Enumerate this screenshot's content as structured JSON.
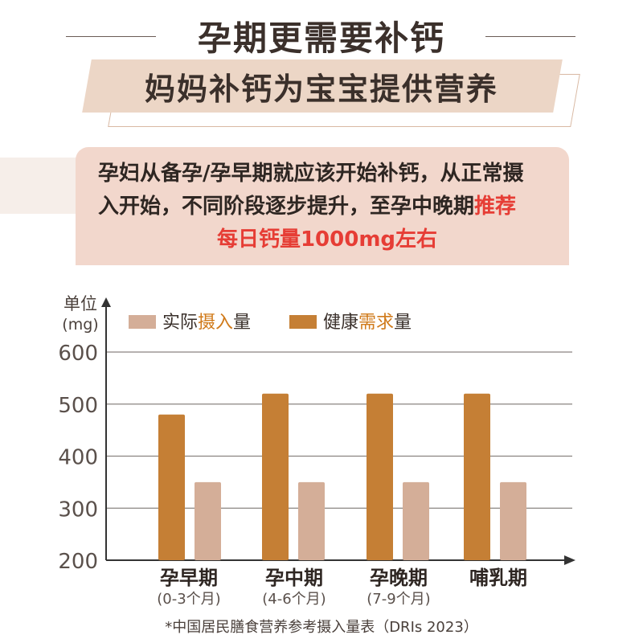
{
  "header": {
    "title": "孕期更需要补钙",
    "subtitle": "妈妈补钙为宝宝提供营养"
  },
  "callout": {
    "line1": "孕妇从备孕/孕早期就应该开始补钙，从正常摄",
    "line2_plain": "入开始，不同阶段逐步提升，至孕中晚期",
    "line2_highlight": "推荐",
    "line3_highlight": "每日钙量1000mg左右"
  },
  "colors": {
    "actual": "#d4ae98",
    "required": "#c57f35",
    "highlight": "#e63d35",
    "legend_emph": "#d07a1a"
  },
  "chart_data": {
    "type": "bar",
    "unit_label_line1": "单位",
    "unit_label_line2": "(mg)",
    "yticks": [
      200,
      300,
      400,
      500,
      600
    ],
    "ylim": [
      200,
      600
    ],
    "categories": [
      "孕早期",
      "孕中期",
      "孕晚期",
      "哺乳期"
    ],
    "category_notes": [
      "(0-3个月)",
      "(4-6个月)",
      "(7-9个月)",
      ""
    ],
    "legend": [
      {
        "pre": "实际",
        "emph": "摄入",
        "post": "量"
      },
      {
        "pre": "健康",
        "emph": "需求",
        "post": "量"
      }
    ],
    "series": [
      {
        "name": "实际摄入量",
        "values": [
          350,
          350,
          350,
          350
        ]
      },
      {
        "name": "健康需求量",
        "values": [
          480,
          520,
          520,
          520
        ]
      }
    ],
    "source": "*中国居民膳食营养参考摄入量表（DRIs 2023）"
  }
}
